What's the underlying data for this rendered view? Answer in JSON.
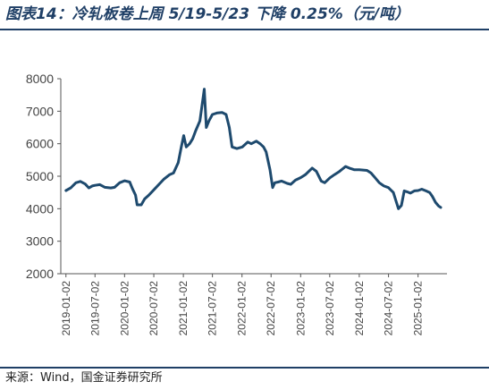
{
  "figure": {
    "title": "图表14：冷轧板卷上周 5/19-5/23 下降 0.25%（元/吨）",
    "source": "来源：Wind，国金证券研究所"
  },
  "colors": {
    "title": "#1f3f66",
    "line": "#1e4a6e",
    "axis": "#555555"
  },
  "chart_data": {
    "type": "line",
    "title": "",
    "xlabel": "",
    "ylabel": "",
    "ylim": [
      2000,
      8000
    ],
    "yticks": [
      2000,
      3000,
      4000,
      5000,
      6000,
      7000,
      8000
    ],
    "xlim": [
      "2018-12-01",
      "2025-07-01"
    ],
    "xticks": [
      "2019-01-02",
      "2019-07-02",
      "2020-01-02",
      "2020-07-02",
      "2021-01-02",
      "2021-07-02",
      "2022-01-02",
      "2022-07-02",
      "2023-01-02",
      "2023-07-02",
      "2024-01-02",
      "2024-07-02",
      "2025-01-02"
    ],
    "grid": false,
    "legend": "none",
    "series": [
      {
        "name": "",
        "points": [
          [
            "2019-01-02",
            4560
          ],
          [
            "2019-02-01",
            4640
          ],
          [
            "2019-03-05",
            4800
          ],
          [
            "2019-04-02",
            4840
          ],
          [
            "2019-05-02",
            4760
          ],
          [
            "2019-05-25",
            4640
          ],
          [
            "2019-06-15",
            4700
          ],
          [
            "2019-07-02",
            4720
          ],
          [
            "2019-08-01",
            4740
          ],
          [
            "2019-09-02",
            4660
          ],
          [
            "2019-10-08",
            4640
          ],
          [
            "2019-11-01",
            4660
          ],
          [
            "2019-12-02",
            4800
          ],
          [
            "2020-01-02",
            4860
          ],
          [
            "2020-02-03",
            4820
          ],
          [
            "2020-02-20",
            4620
          ],
          [
            "2020-03-10",
            4420
          ],
          [
            "2020-03-20",
            4120
          ],
          [
            "2020-04-15",
            4120
          ],
          [
            "2020-05-06",
            4300
          ],
          [
            "2020-06-01",
            4420
          ],
          [
            "2020-07-02",
            4580
          ],
          [
            "2020-08-03",
            4750
          ],
          [
            "2020-09-01",
            4900
          ],
          [
            "2020-10-09",
            5050
          ],
          [
            "2020-11-02",
            5100
          ],
          [
            "2020-12-01",
            5420
          ],
          [
            "2020-12-20",
            5900
          ],
          [
            "2021-01-04",
            6250
          ],
          [
            "2021-01-20",
            5900
          ],
          [
            "2021-02-10",
            6000
          ],
          [
            "2021-03-01",
            6150
          ],
          [
            "2021-03-20",
            6400
          ],
          [
            "2021-04-15",
            6700
          ],
          [
            "2021-05-12",
            7680
          ],
          [
            "2021-05-25",
            6500
          ],
          [
            "2021-06-10",
            6700
          ],
          [
            "2021-07-02",
            6900
          ],
          [
            "2021-08-02",
            6950
          ],
          [
            "2021-09-01",
            6960
          ],
          [
            "2021-09-25",
            6900
          ],
          [
            "2021-10-15",
            6500
          ],
          [
            "2021-11-01",
            5900
          ],
          [
            "2021-12-01",
            5850
          ],
          [
            "2022-01-04",
            5900
          ],
          [
            "2022-02-07",
            6050
          ],
          [
            "2022-03-01",
            6000
          ],
          [
            "2022-04-01",
            6080
          ],
          [
            "2022-04-25",
            6000
          ],
          [
            "2022-05-16",
            5900
          ],
          [
            "2022-06-01",
            5750
          ],
          [
            "2022-06-25",
            5200
          ],
          [
            "2022-07-12",
            4650
          ],
          [
            "2022-07-25",
            4800
          ],
          [
            "2022-08-15",
            4820
          ],
          [
            "2022-09-05",
            4850
          ],
          [
            "2022-10-10",
            4780
          ],
          [
            "2022-11-01",
            4750
          ],
          [
            "2022-12-01",
            4880
          ],
          [
            "2023-01-03",
            4960
          ],
          [
            "2023-02-01",
            5050
          ],
          [
            "2023-03-15",
            5250
          ],
          [
            "2023-04-10",
            5150
          ],
          [
            "2023-05-10",
            4850
          ],
          [
            "2023-06-01",
            4800
          ],
          [
            "2023-07-03",
            4950
          ],
          [
            "2023-08-01",
            5050
          ],
          [
            "2023-09-01",
            5150
          ],
          [
            "2023-10-09",
            5300
          ],
          [
            "2023-11-01",
            5250
          ],
          [
            "2023-12-01",
            5200
          ],
          [
            "2024-01-02",
            5200
          ],
          [
            "2024-02-19",
            5180
          ],
          [
            "2024-03-15",
            5100
          ],
          [
            "2024-04-10",
            4950
          ],
          [
            "2024-05-06",
            4800
          ],
          [
            "2024-06-03",
            4700
          ],
          [
            "2024-07-01",
            4650
          ],
          [
            "2024-08-01",
            4500
          ],
          [
            "2024-09-02",
            4000
          ],
          [
            "2024-09-20",
            4100
          ],
          [
            "2024-10-08",
            4550
          ],
          [
            "2024-10-25",
            4520
          ],
          [
            "2024-11-15",
            4480
          ],
          [
            "2024-12-10",
            4550
          ],
          [
            "2025-01-02",
            4560
          ],
          [
            "2025-01-25",
            4600
          ],
          [
            "2025-02-20",
            4550
          ],
          [
            "2025-03-15",
            4500
          ],
          [
            "2025-04-01",
            4380
          ],
          [
            "2025-04-20",
            4200
          ],
          [
            "2025-05-10",
            4080
          ],
          [
            "2025-05-23",
            4040
          ]
        ]
      }
    ]
  }
}
